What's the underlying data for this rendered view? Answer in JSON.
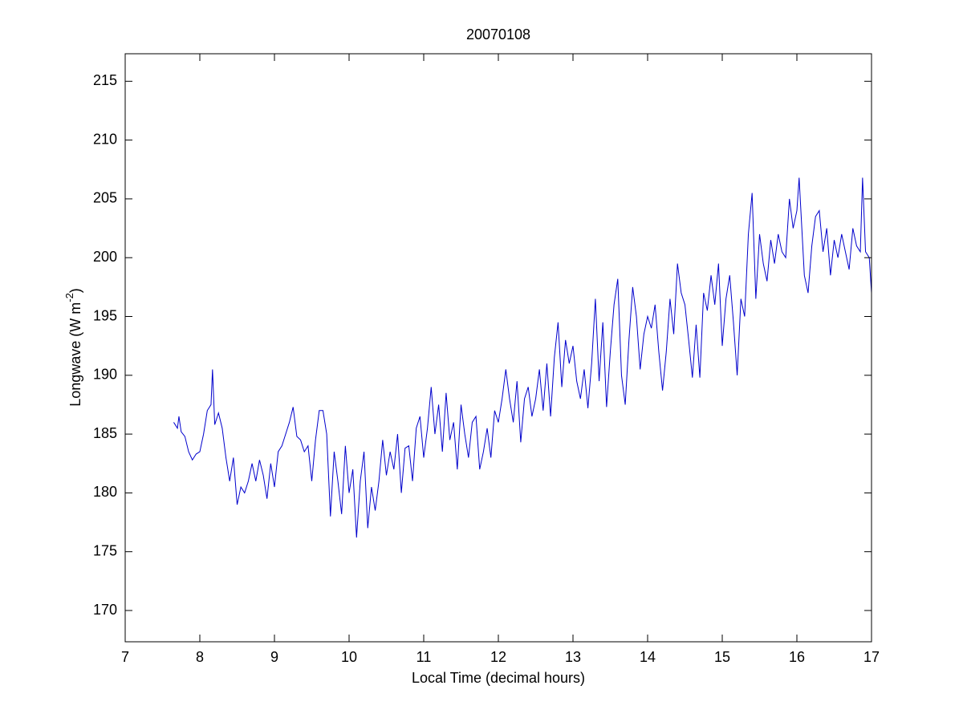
{
  "chart_data": {
    "type": "line",
    "title": "20070108",
    "xlabel": "Local Time (decimal hours)",
    "ylabel": [
      "Longwave (W m",
      "-2",
      ")"
    ],
    "xlim": [
      7,
      17
    ],
    "ylim": [
      167.34,
      217.34
    ],
    "xticks": [
      7,
      8,
      9,
      10,
      11,
      12,
      13,
      14,
      15,
      16,
      17
    ],
    "yticks": [
      170,
      175,
      180,
      185,
      190,
      195,
      200,
      205,
      210,
      215
    ],
    "grid": false,
    "x": [
      7.65,
      7.7,
      7.72,
      7.75,
      7.8,
      7.85,
      7.9,
      7.95,
      8.0,
      8.05,
      8.1,
      8.15,
      8.17,
      8.2,
      8.25,
      8.3,
      8.35,
      8.4,
      8.45,
      8.5,
      8.55,
      8.6,
      8.65,
      8.7,
      8.75,
      8.8,
      8.85,
      8.9,
      8.95,
      9.0,
      9.05,
      9.1,
      9.15,
      9.2,
      9.25,
      9.3,
      9.35,
      9.4,
      9.45,
      9.5,
      9.55,
      9.6,
      9.65,
      9.7,
      9.75,
      9.8,
      9.85,
      9.9,
      9.95,
      10.0,
      10.05,
      10.1,
      10.15,
      10.2,
      10.25,
      10.3,
      10.35,
      10.4,
      10.45,
      10.5,
      10.55,
      10.6,
      10.65,
      10.7,
      10.75,
      10.8,
      10.85,
      10.9,
      10.95,
      11.0,
      11.05,
      11.1,
      11.15,
      11.2,
      11.25,
      11.3,
      11.35,
      11.4,
      11.45,
      11.5,
      11.55,
      11.6,
      11.65,
      11.7,
      11.75,
      11.8,
      11.85,
      11.9,
      11.95,
      12.0,
      12.05,
      12.1,
      12.15,
      12.2,
      12.25,
      12.3,
      12.35,
      12.4,
      12.45,
      12.5,
      12.55,
      12.6,
      12.65,
      12.7,
      12.75,
      12.8,
      12.85,
      12.9,
      12.95,
      13.0,
      13.05,
      13.1,
      13.15,
      13.2,
      13.25,
      13.3,
      13.35,
      13.4,
      13.45,
      13.5,
      13.55,
      13.6,
      13.65,
      13.7,
      13.75,
      13.8,
      13.85,
      13.9,
      13.95,
      14.0,
      14.05,
      14.1,
      14.15,
      14.2,
      14.25,
      14.3,
      14.35,
      14.4,
      14.45,
      14.5,
      14.55,
      14.6,
      14.65,
      14.7,
      14.75,
      14.8,
      14.85,
      14.9,
      14.95,
      15.0,
      15.05,
      15.1,
      15.15,
      15.2,
      15.25,
      15.3,
      15.35,
      15.4,
      15.45,
      15.5,
      15.55,
      15.6,
      15.65,
      15.7,
      15.75,
      15.8,
      15.85,
      15.9,
      15.95,
      16.0,
      16.03,
      16.1,
      16.15,
      16.2,
      16.25,
      16.3,
      16.35,
      16.4,
      16.45,
      16.5,
      16.55,
      16.6,
      16.65,
      16.7,
      16.75,
      16.8,
      16.85,
      16.88,
      16.92,
      16.97,
      17.0
    ],
    "series": [
      {
        "color": "#0000cc",
        "values": [
          186,
          185.5,
          186.5,
          185.2,
          184.8,
          183.5,
          182.8,
          183.3,
          183.5,
          185,
          187,
          187.5,
          190.5,
          185.8,
          186.8,
          185.5,
          183,
          181,
          183,
          179,
          180.5,
          180,
          181,
          182.5,
          181,
          182.8,
          181.5,
          179.5,
          182.5,
          180.5,
          183.5,
          184,
          185,
          186,
          187.3,
          184.8,
          184.5,
          183.5,
          184,
          181,
          184.5,
          187,
          187,
          185,
          178,
          183.5,
          181,
          178.2,
          184,
          180,
          182,
          176.2,
          181,
          183.5,
          177,
          180.5,
          178.5,
          181,
          184.5,
          181.5,
          183.5,
          182,
          185,
          180,
          183.8,
          184,
          181,
          185.5,
          186.5,
          183,
          185.5,
          189,
          185,
          187.5,
          183.5,
          188.5,
          184.5,
          186,
          182,
          187.5,
          185,
          183,
          186,
          186.5,
          182,
          183.5,
          185.5,
          183,
          187,
          186,
          188,
          190.5,
          188,
          186,
          189.5,
          184.3,
          188,
          189,
          186.5,
          188,
          190.5,
          187,
          191,
          186.5,
          191.5,
          194.5,
          189,
          193,
          191,
          192.5,
          189.5,
          188,
          190.5,
          187.2,
          191,
          196.5,
          189.5,
          194.5,
          187.3,
          192,
          196,
          198.2,
          190,
          187.5,
          193,
          197.5,
          195,
          190.5,
          193.5,
          195,
          194,
          196,
          192,
          188.7,
          192,
          196.5,
          193.5,
          199.5,
          197,
          196,
          193,
          189.8,
          194.3,
          189.8,
          197,
          195.5,
          198.5,
          196,
          199.5,
          192.5,
          196.5,
          198.5,
          194.5,
          190,
          196.5,
          195,
          202,
          205.5,
          196.5,
          202,
          199.5,
          198,
          201.5,
          199.5,
          202,
          200.5,
          200,
          205,
          202.5,
          204,
          206.8,
          198.5,
          197,
          201,
          203.5,
          204,
          200.5,
          202.5,
          198.5,
          201.5,
          200,
          202,
          200.5,
          199,
          202.5,
          201,
          200.5,
          206.8,
          200.5,
          200,
          197
        ]
      }
    ]
  }
}
